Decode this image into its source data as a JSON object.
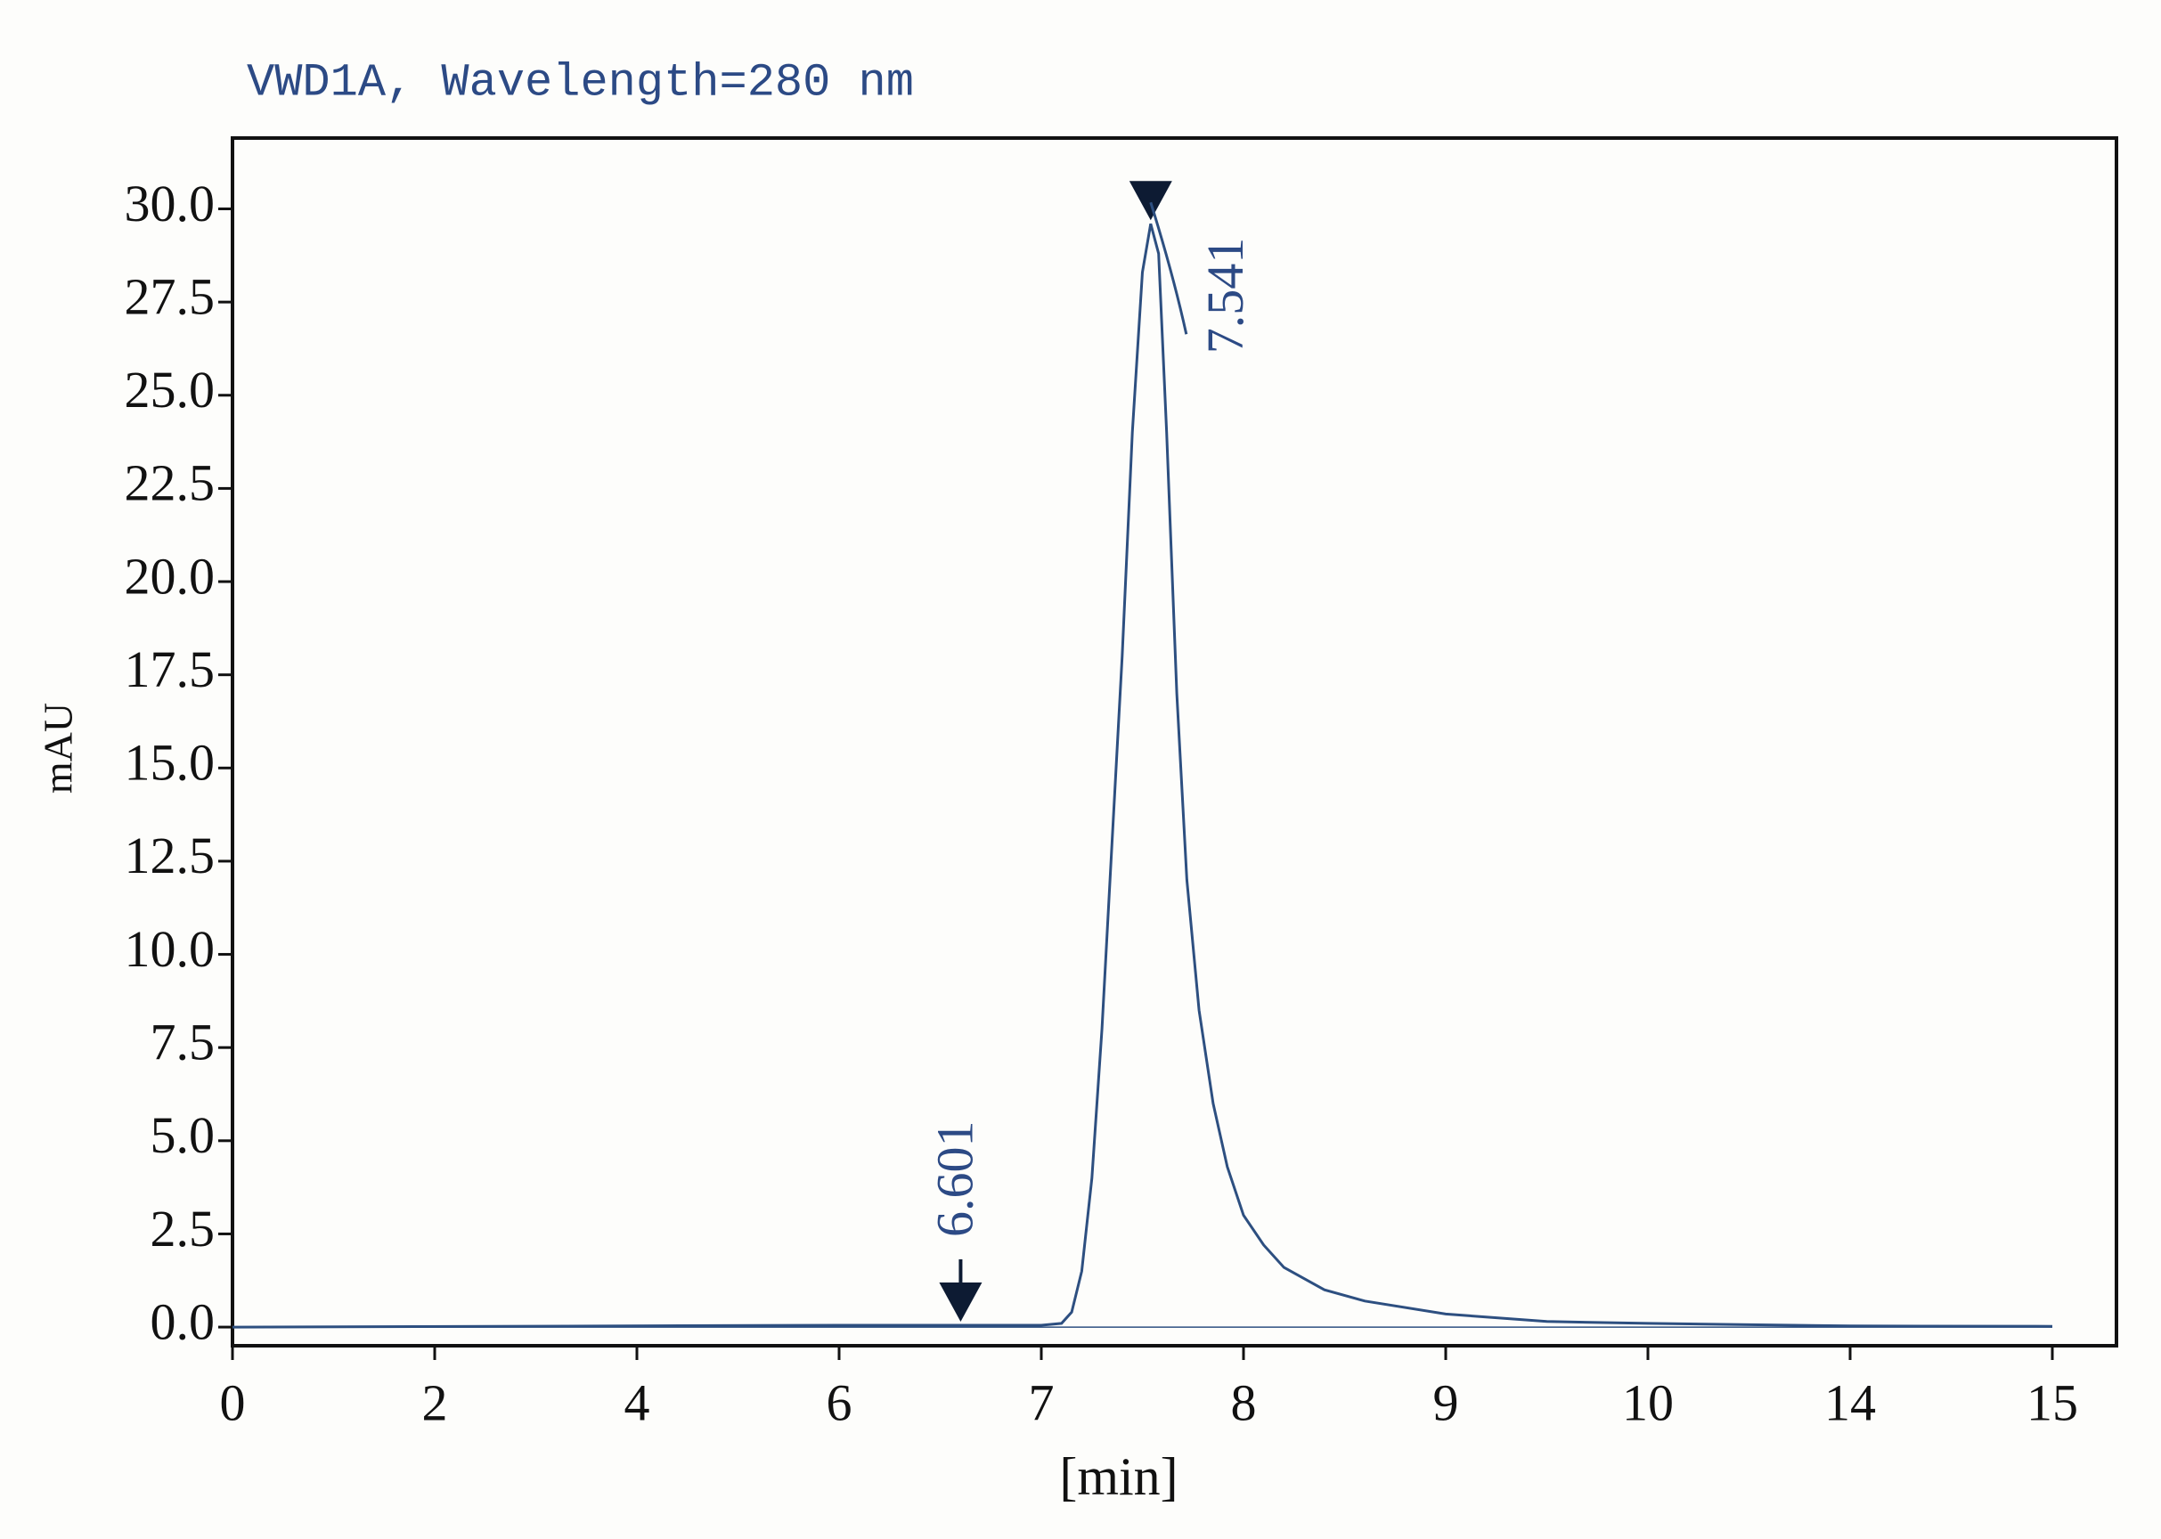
{
  "chart_data": {
    "type": "line",
    "title": "VWD1A, Wavelength=280 nm",
    "x_label": "[min]",
    "y_label": "mAU",
    "x": [
      0,
      6,
      6.601,
      7,
      7.1,
      7.15,
      7.2,
      7.25,
      7.3,
      7.35,
      7.4,
      7.45,
      7.5,
      7.541,
      7.58,
      7.62,
      7.67,
      7.72,
      7.78,
      7.85,
      7.92,
      8.0,
      8.1,
      8.2,
      8.4,
      8.6,
      9,
      9.5,
      10,
      14,
      15
    ],
    "values": [
      0,
      0.05,
      0.05,
      0.05,
      0.1,
      0.4,
      1.5,
      4,
      8,
      13,
      18,
      24,
      28.3,
      29.6,
      28.8,
      24,
      17,
      12,
      8.5,
      6,
      4.3,
      3.0,
      2.2,
      1.6,
      1.0,
      0.7,
      0.35,
      0.15,
      0.1,
      0.03,
      0.02
    ],
    "color": "#2d4f80",
    "xlim": [
      0,
      15.3
    ],
    "xticks": [
      0,
      2,
      4,
      6,
      7,
      8,
      9,
      10,
      14,
      15
    ],
    "ylim": [
      -0.5,
      31.9
    ],
    "yticks": [
      {
        "value": 0,
        "label": "0.0"
      },
      2.5,
      {
        "value": 5,
        "label": "5.0"
      },
      7.5,
      {
        "value": 10,
        "label": "10.0"
      },
      12.5,
      {
        "value": 15,
        "label": "15.0"
      },
      17.5,
      {
        "value": 20,
        "label": "20.0"
      },
      22.5,
      {
        "value": 25,
        "label": "25.0"
      },
      27.5,
      {
        "value": 30,
        "label": "30.0"
      }
    ],
    "annotations": [
      {
        "x": 6.601,
        "label": "6.601"
      },
      {
        "x": 7.541,
        "label": "7.541"
      }
    ]
  }
}
